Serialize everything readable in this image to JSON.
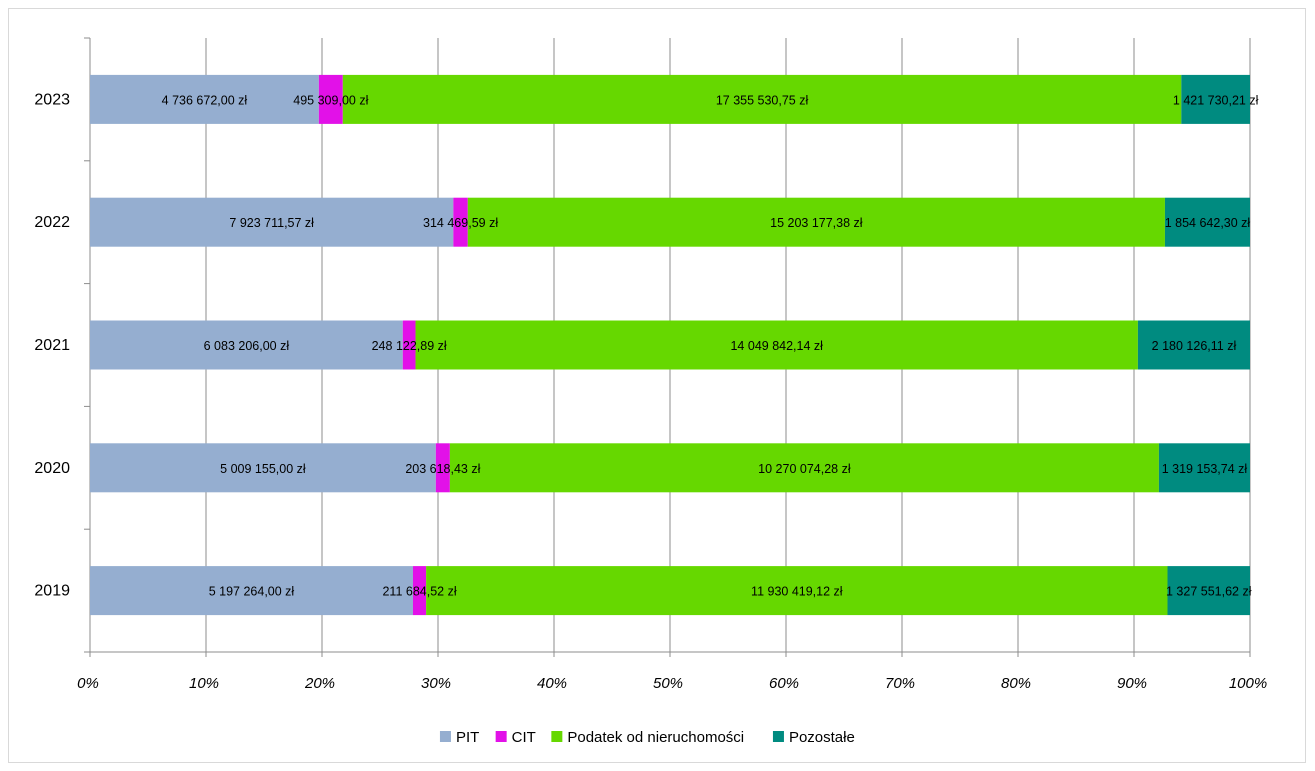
{
  "chart_data": {
    "type": "bar",
    "orientation": "horizontal",
    "stacked": "percent",
    "title": "",
    "xlabel": "",
    "ylabel": "",
    "xlim": [
      0,
      100
    ],
    "grid": true,
    "legend_position": "bottom",
    "categories": [
      "2023",
      "2022",
      "2021",
      "2020",
      "2019"
    ],
    "x_ticks": [
      "0%",
      "10%",
      "20%",
      "30%",
      "40%",
      "50%",
      "60%",
      "70%",
      "80%",
      "90%",
      "100%"
    ],
    "series": [
      {
        "name": "PIT",
        "color": "#95aed0",
        "values": [
          4736672.0,
          7923711.57,
          6083206.0,
          5009155.0,
          5197264.0
        ],
        "labels": [
          "4 736 672,00 zł",
          "7 923 711,57 zł",
          "6 083 206,00 zł",
          "5 009 155,00 zł",
          "5 197 264,00 zł"
        ]
      },
      {
        "name": "CIT",
        "color": "#e211e8",
        "values": [
          495309.0,
          314469.59,
          248122.89,
          203618.43,
          211684.52
        ],
        "labels": [
          "495 309,00 zł",
          "314 469,59 zł",
          "248 122,89 zł",
          "203 618,43 zł",
          "211 684,52 zł"
        ]
      },
      {
        "name": "Podatek od nieruchomości",
        "color": "#66d800",
        "values": [
          17355530.75,
          15203177.38,
          14049842.14,
          10270074.28,
          11930419.12
        ],
        "labels": [
          "17 355 530,75 zł",
          "15 203 177,38 zł",
          "14 049 842,14 zł",
          "10 270 074,28 zł",
          "11 930 419,12 zł"
        ]
      },
      {
        "name": "Pozostałe",
        "color": "#008b80",
        "values": [
          1421730.21,
          1854642.3,
          2180126.11,
          1319153.74,
          1327551.62
        ],
        "labels": [
          "1 421 730,21 zł",
          "1 854 642,30 zł",
          "2 180 126,11 zł",
          "1 319 153,74 zł",
          "1 327 551,62 zł"
        ]
      }
    ]
  }
}
